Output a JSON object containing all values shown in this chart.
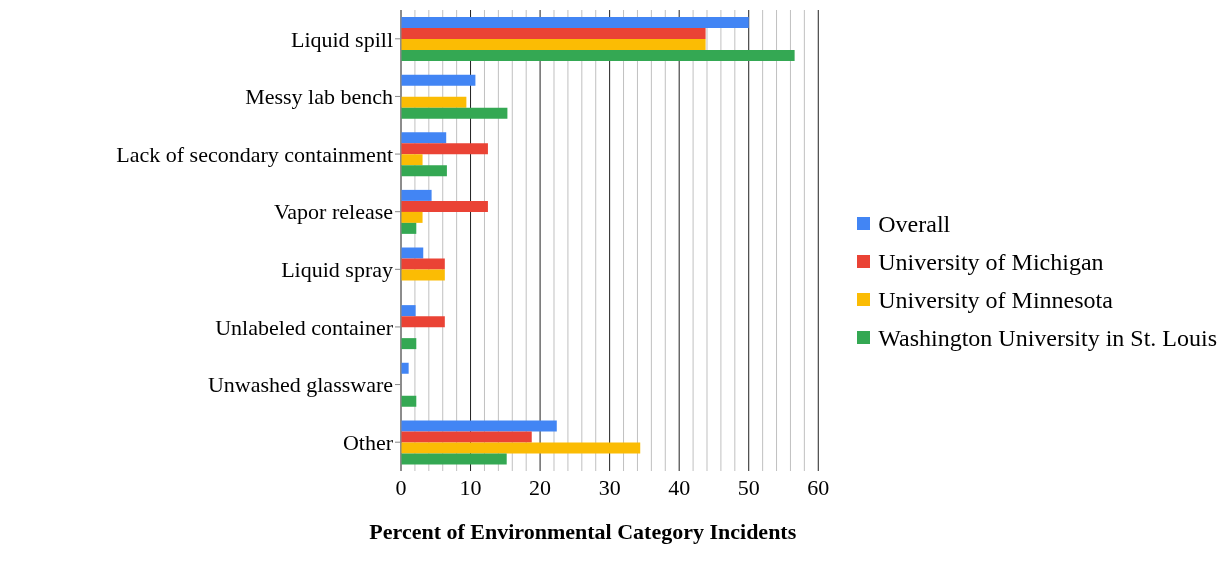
{
  "chart_data": {
    "type": "bar",
    "orientation": "horizontal",
    "xlabel": "Percent of Environmental Category Incidents",
    "categories": [
      "Liquid spill",
      "Messy lab bench",
      "Lack of secondary containment",
      "Vapor release",
      "Liquid spray",
      "Unlabeled container",
      "Unwashed glassware",
      "Other"
    ],
    "series": [
      {
        "name": "Overall",
        "color": "#4285f4",
        "values": [
          50.0,
          10.7,
          6.5,
          4.4,
          3.2,
          2.1,
          1.1,
          22.4
        ]
      },
      {
        "name": "University of Michigan",
        "color": "#ea4335",
        "values": [
          43.8,
          0,
          12.5,
          12.5,
          6.3,
          6.3,
          0,
          18.8
        ]
      },
      {
        "name": "University of Minnesota",
        "color": "#fbbc04",
        "values": [
          43.8,
          9.4,
          3.1,
          3.1,
          6.3,
          0,
          0,
          34.4
        ]
      },
      {
        "name": "Washington University in St. Louis",
        "color": "#34a853",
        "values": [
          56.6,
          15.3,
          6.6,
          2.2,
          0,
          2.2,
          2.2,
          15.2
        ]
      }
    ],
    "xlim": [
      0,
      60
    ],
    "xticks": [
      0,
      {
        "value": 2,
        "label": null
      },
      {
        "value": 4,
        "label": null
      },
      {
        "value": 6,
        "label": null
      },
      {
        "value": 8,
        "label": null
      },
      10,
      {
        "value": 12,
        "label": null
      },
      {
        "value": 14,
        "label": null
      },
      {
        "value": 16,
        "label": null
      },
      {
        "value": 18,
        "label": null
      },
      20,
      {
        "value": 22,
        "label": null
      },
      {
        "value": 24,
        "label": null
      },
      {
        "value": 26,
        "label": null
      },
      {
        "value": 28,
        "label": null
      },
      30,
      {
        "value": 32,
        "label": null
      },
      {
        "value": 34,
        "label": null
      },
      {
        "value": 36,
        "label": null
      },
      {
        "value": 38,
        "label": null
      },
      40,
      {
        "value": 42,
        "label": null
      },
      {
        "value": 44,
        "label": null
      },
      {
        "value": 46,
        "label": null
      },
      {
        "value": 48,
        "label": null
      },
      50,
      {
        "value": 52,
        "label": null
      },
      {
        "value": 54,
        "label": null
      },
      {
        "value": 56,
        "label": null
      },
      {
        "value": 58,
        "label": null
      },
      60
    ],
    "grid": "x",
    "legend": "right"
  }
}
